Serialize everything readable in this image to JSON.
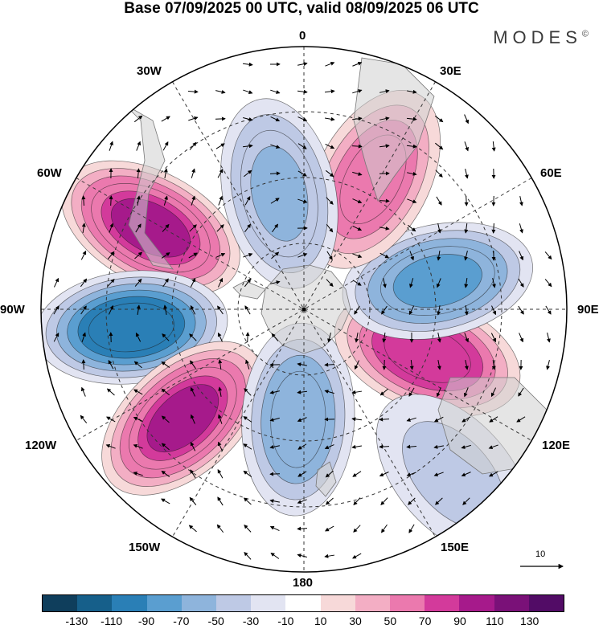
{
  "title": "Base 07/09/2025 00 UTC, valid 08/09/2025 06 UTC",
  "brand": "MODES",
  "brand_mark": "©",
  "longitude_labels": {
    "top": "0",
    "top_right": "30E",
    "right_upper": "60E",
    "right": "90E",
    "right_lower": "120E",
    "bottom_right": "150E",
    "bottom": "180",
    "bottom_left": "150W",
    "left_lower": "120W",
    "left": "90W",
    "left_upper": "60W",
    "top_left": "30W"
  },
  "vector_scale_label": "10",
  "legend": {
    "colors": [
      "#0f3e5c",
      "#165f8a",
      "#2a7fb6",
      "#5a9ed0",
      "#8eb4dc",
      "#bec9e5",
      "#e2e4f2",
      "#ffffff",
      "#f7d9d9",
      "#f3aec4",
      "#eb79ae",
      "#d33a9b",
      "#a61a8b",
      "#7a1178",
      "#520c66"
    ],
    "labels": [
      "-130",
      "-110",
      "-90",
      "-70",
      "-50",
      "-30",
      "-10",
      "10",
      "30",
      "50",
      "70",
      "90",
      "110",
      "130"
    ]
  },
  "anomaly_cells": [
    {
      "name": "cell-60w-positive",
      "lon": -62,
      "colat": 0.66,
      "value": 120
    },
    {
      "name": "cell-90w-negative",
      "lon": -96,
      "colat": 0.66,
      "value": -125
    },
    {
      "name": "cell-125w-positive",
      "lon": -132,
      "colat": 0.62,
      "value": 120
    },
    {
      "name": "cell-180-negative",
      "lon": -177,
      "colat": 0.42,
      "value": -85
    },
    {
      "name": "cell-120e-positive",
      "lon": 110,
      "colat": 0.5,
      "value": 105
    },
    {
      "name": "cell-75e-negative",
      "lon": 78,
      "colat": 0.52,
      "value": -100
    },
    {
      "name": "cell-25e-positive",
      "lon": 28,
      "colat": 0.56,
      "value": 85
    },
    {
      "name": "cell-10w-negative",
      "lon": -12,
      "colat": 0.45,
      "value": -70
    },
    {
      "name": "cell-140e-negative",
      "lon": 138,
      "colat": 0.85,
      "value": -40
    }
  ]
}
